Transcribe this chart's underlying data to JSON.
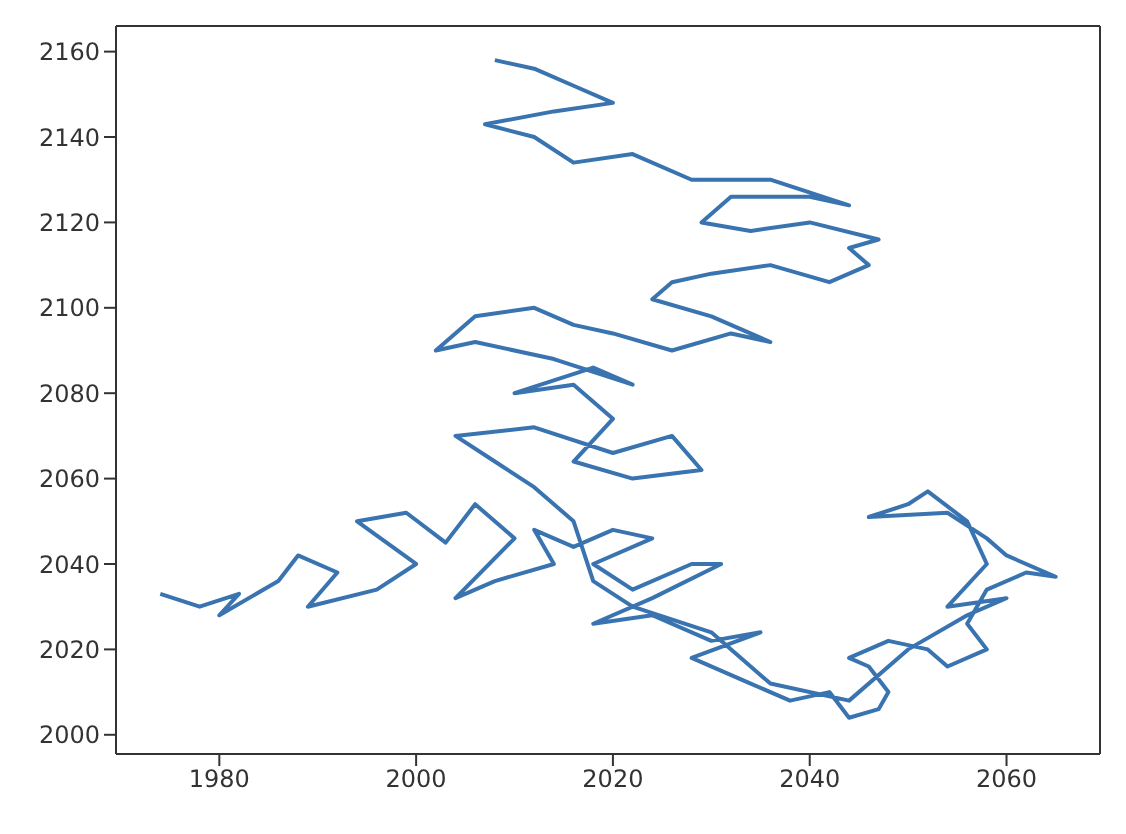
{
  "chart_data": {
    "type": "line",
    "color": "#3a74b0",
    "marker": "none",
    "line_style": "solid",
    "xlim": [
      1969.5,
      2069.5
    ],
    "xticks": [
      1980,
      2000,
      2020,
      2040,
      2060
    ],
    "ylim": [
      1995.5,
      2166
    ],
    "yticks": [
      2000,
      2020,
      2040,
      2060,
      2080,
      2100,
      2120,
      2140,
      2160
    ],
    "x": [
      1974,
      1978,
      1982,
      1980,
      1986,
      1988,
      1992,
      1989,
      1996,
      2000,
      1994,
      1999,
      2003,
      2006,
      2010,
      2004,
      2008,
      2014,
      2012,
      2016,
      2020,
      2024,
      2018,
      2022,
      2028,
      2031,
      2024,
      2018,
      2024,
      2030,
      2035,
      2028,
      2034,
      2038,
      2042,
      2044,
      2047,
      2048,
      2046,
      2044,
      2048,
      2052,
      2054,
      2058,
      2056,
      2058,
      2062,
      2065,
      2060,
      2058,
      2054,
      2046,
      2050,
      2052,
      2056,
      2058,
      2054,
      2060,
      2056,
      2050,
      2044,
      2036,
      2030,
      2022,
      2018,
      2016,
      2012,
      2008,
      2004,
      2012,
      2020,
      2026,
      2029,
      2022,
      2016,
      2020,
      2016,
      2010,
      2018,
      2022,
      2014,
      2006,
      2002,
      2006,
      2012,
      2016,
      2020,
      2026,
      2032,
      2036,
      2030,
      2024,
      2026,
      2030,
      2036,
      2042,
      2046,
      2044,
      2047,
      2040,
      2034,
      2029,
      2032,
      2040,
      2044,
      2036,
      2028,
      2022,
      2016,
      2012,
      2007,
      2014,
      2020,
      2016,
      2012,
      2008
    ],
    "values": [
      2033,
      2030,
      2033,
      2028,
      2036,
      2042,
      2038,
      2030,
      2034,
      2040,
      2050,
      2052,
      2045,
      2054,
      2046,
      2032,
      2036,
      2040,
      2048,
      2044,
      2048,
      2046,
      2040,
      2034,
      2040,
      2040,
      2032,
      2026,
      2028,
      2022,
      2024,
      2018,
      2012,
      2008,
      2010,
      2004,
      2006,
      2010,
      2016,
      2018,
      2022,
      2020,
      2016,
      2020,
      2026,
      2034,
      2038,
      2037,
      2042,
      2046,
      2052,
      2051,
      2054,
      2057,
      2050,
      2040,
      2030,
      2032,
      2028,
      2020,
      2008,
      2012,
      2024,
      2030,
      2036,
      2050,
      2058,
      2064,
      2070,
      2072,
      2066,
      2070,
      2062,
      2060,
      2064,
      2074,
      2082,
      2080,
      2086,
      2082,
      2088,
      2092,
      2090,
      2098,
      2100,
      2096,
      2094,
      2090,
      2094,
      2092,
      2098,
      2102,
      2106,
      2108,
      2110,
      2106,
      2110,
      2114,
      2116,
      2120,
      2118,
      2120,
      2126,
      2126,
      2124,
      2130,
      2130,
      2136,
      2134,
      2140,
      2143,
      2146,
      2148,
      2152,
      2156,
      2158
    ]
  }
}
